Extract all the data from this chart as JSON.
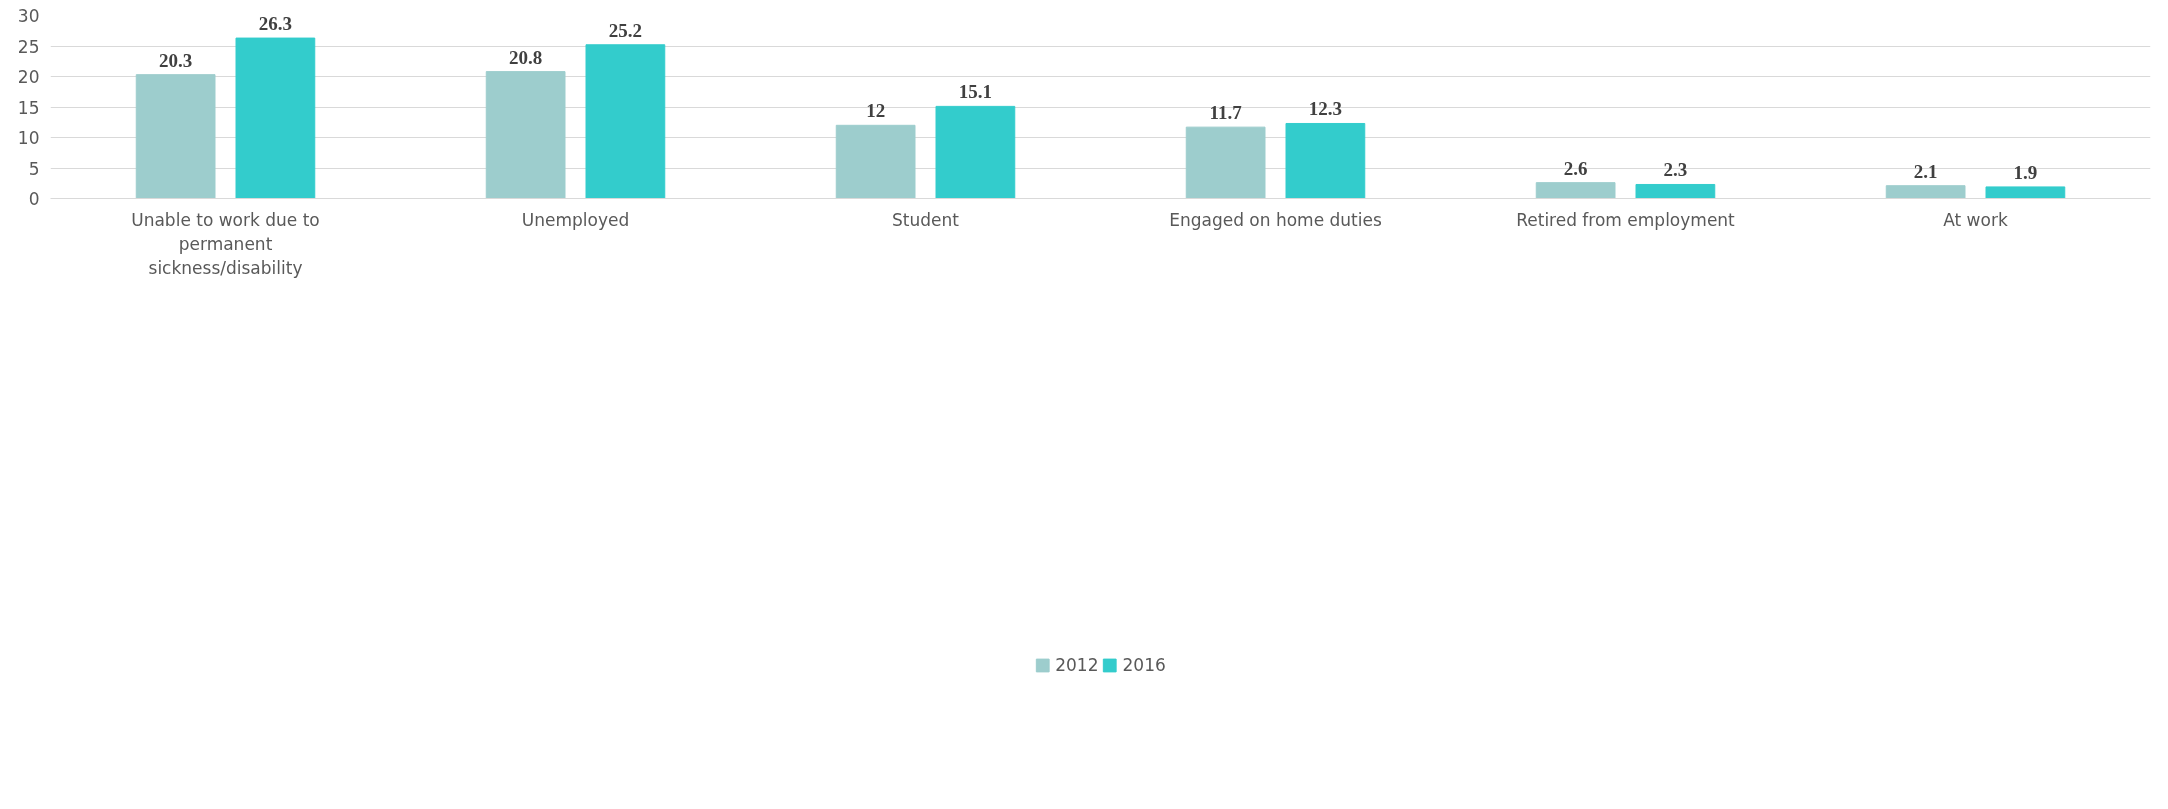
{
  "chart_data": {
    "type": "bar",
    "categories": [
      "Unable to work due to permanent sickness/disability",
      "Unemployed",
      "Student",
      "Engaged on home duties",
      "Retired from employment",
      "At work"
    ],
    "series": [
      {
        "name": "2012",
        "color": "#9dcdcd",
        "values": [
          20.3,
          20.8,
          12,
          11.7,
          2.6,
          2.1
        ]
      },
      {
        "name": "2016",
        "color": "#33cccc",
        "values": [
          26.3,
          25.2,
          15.1,
          12.3,
          2.3,
          1.9
        ]
      }
    ],
    "ylim": [
      0,
      30
    ],
    "yticks": [
      0,
      5,
      10,
      15,
      20,
      25,
      30
    ],
    "grid": "y",
    "legend": "bottom",
    "data_labels": true
  }
}
